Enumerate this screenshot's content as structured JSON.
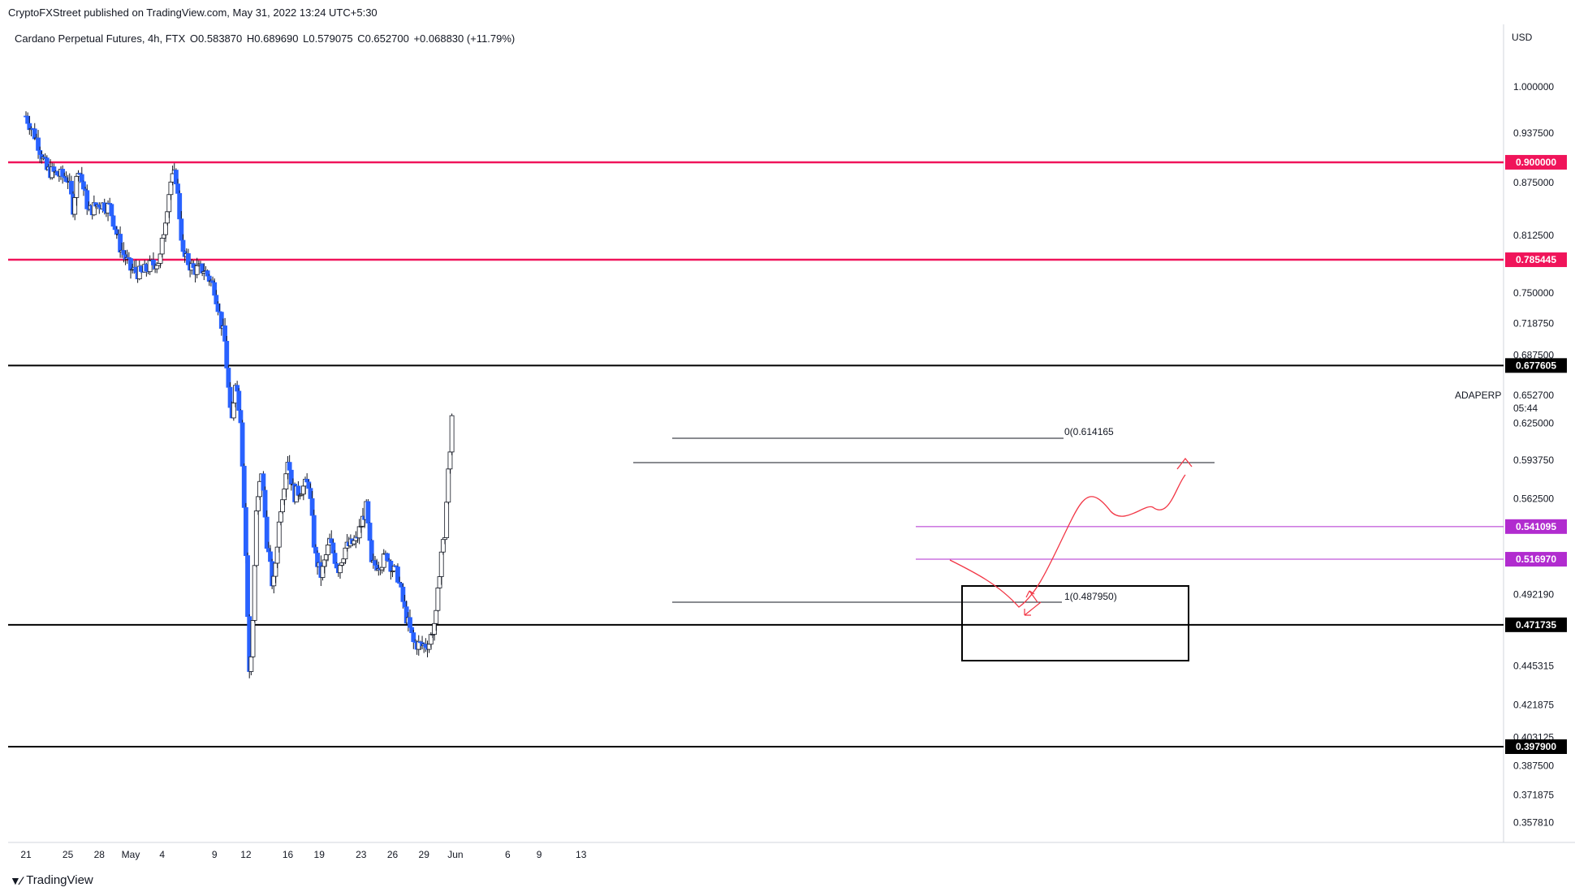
{
  "header": {
    "published_line": "CryptoFXStreet published on TradingView.com, May 31, 2022 13:24 UTC+5:30",
    "symbol": "Cardano Perpetual Futures, 4h, FTX",
    "open": "O0.583870",
    "high": "H0.689690",
    "low": "L0.579075",
    "close": "C0.652700",
    "change": "+0.068830 (+11.79%)"
  },
  "footer": {
    "brand": "TradingView",
    "brand_icon": "tradingview-logo-icon"
  },
  "colors": {
    "bull": "#ffffff",
    "bear": "#2962ff",
    "red_level": "#f0145a",
    "purple_level": "#b12ccf",
    "black_level": "#000000",
    "projection": "#f23645"
  },
  "chart_data": {
    "type": "candlestick",
    "currency": "USD",
    "interval": "4h",
    "symbol_tag": "ADAPERP",
    "last_price": "0.652700",
    "countdown": "05:44",
    "y_ticks": [
      "1.000000",
      "0.937500",
      "0.875000",
      "0.812500",
      "0.750000",
      "0.718750",
      "0.687500",
      "0.625000",
      "0.593750",
      "0.562500",
      "0.492190",
      "0.445315",
      "0.421875",
      "0.403125",
      "0.387500",
      "0.371875",
      "0.357810"
    ],
    "x_ticks": [
      {
        "label": "21",
        "day": 0
      },
      {
        "label": "25",
        "day": 4
      },
      {
        "label": "28",
        "day": 7
      },
      {
        "label": "May",
        "day": 10
      },
      {
        "label": "4",
        "day": 13
      },
      {
        "label": "9",
        "day": 18
      },
      {
        "label": "12",
        "day": 21
      },
      {
        "label": "16",
        "day": 25
      },
      {
        "label": "19",
        "day": 28
      },
      {
        "label": "23",
        "day": 32
      },
      {
        "label": "26",
        "day": 35
      },
      {
        "label": "29",
        "day": 38
      },
      {
        "label": "Jun",
        "day": 41
      },
      {
        "label": "6",
        "day": 46
      },
      {
        "label": "9",
        "day": 49
      },
      {
        "label": "13",
        "day": 53
      }
    ],
    "levels": [
      {
        "value": 0.9,
        "label": "0.900000",
        "style": "red"
      },
      {
        "value": 0.785445,
        "label": "0.785445",
        "style": "red"
      },
      {
        "value": 0.677605,
        "label": "0.677605",
        "style": "black"
      },
      {
        "value": 0.541095,
        "label": "0.541095",
        "style": "purple"
      },
      {
        "value": 0.51697,
        "label": "0.516970",
        "style": "purple"
      },
      {
        "value": 0.471735,
        "label": "0.471735",
        "style": "black"
      },
      {
        "value": 0.3979,
        "label": "0.397900",
        "style": "black"
      }
    ],
    "fib": {
      "level0": "0(0.614165",
      "level1": "1(0.487950)"
    },
    "price_path": [
      {
        "day": 0,
        "price": 0.96
      },
      {
        "day": 1,
        "price": 0.93
      },
      {
        "day": 2,
        "price": 0.89
      },
      {
        "day": 3,
        "price": 0.885
      },
      {
        "day": 4,
        "price": 0.88
      },
      {
        "day": 4.5,
        "price": 0.845
      },
      {
        "day": 5,
        "price": 0.895
      },
      {
        "day": 6,
        "price": 0.84
      },
      {
        "day": 7,
        "price": 0.85
      },
      {
        "day": 8,
        "price": 0.845
      },
      {
        "day": 9,
        "price": 0.8
      },
      {
        "day": 10,
        "price": 0.775
      },
      {
        "day": 11,
        "price": 0.77
      },
      {
        "day": 12,
        "price": 0.78
      },
      {
        "day": 12.8,
        "price": 0.785
      },
      {
        "day": 13.8,
        "price": 0.875
      },
      {
        "day": 14.3,
        "price": 0.885
      },
      {
        "day": 15,
        "price": 0.79
      },
      {
        "day": 16,
        "price": 0.775
      },
      {
        "day": 17,
        "price": 0.775
      },
      {
        "day": 18,
        "price": 0.755
      },
      {
        "day": 19,
        "price": 0.7
      },
      {
        "day": 19.6,
        "price": 0.62
      },
      {
        "day": 20,
        "price": 0.665
      },
      {
        "day": 20.5,
        "price": 0.63
      },
      {
        "day": 21,
        "price": 0.52
      },
      {
        "day": 21.3,
        "price": 0.44
      },
      {
        "day": 21.6,
        "price": 0.46
      },
      {
        "day": 22,
        "price": 0.55
      },
      {
        "day": 22.5,
        "price": 0.585
      },
      {
        "day": 23,
        "price": 0.53
      },
      {
        "day": 23.6,
        "price": 0.495
      },
      {
        "day": 24.3,
        "price": 0.555
      },
      {
        "day": 25,
        "price": 0.595
      },
      {
        "day": 25.6,
        "price": 0.565
      },
      {
        "day": 26.2,
        "price": 0.57
      },
      {
        "day": 27,
        "price": 0.575
      },
      {
        "day": 27.6,
        "price": 0.52
      },
      {
        "day": 28.2,
        "price": 0.505
      },
      {
        "day": 29,
        "price": 0.53
      },
      {
        "day": 29.8,
        "price": 0.51
      },
      {
        "day": 30.5,
        "price": 0.525
      },
      {
        "day": 31.5,
        "price": 0.53
      },
      {
        "day": 32.5,
        "price": 0.555
      },
      {
        "day": 33,
        "price": 0.512
      },
      {
        "day": 34,
        "price": 0.515
      },
      {
        "day": 34.5,
        "price": 0.52
      },
      {
        "day": 35,
        "price": 0.51
      },
      {
        "day": 35.5,
        "price": 0.505
      },
      {
        "day": 36.2,
        "price": 0.48
      },
      {
        "day": 37,
        "price": 0.46
      },
      {
        "day": 37.8,
        "price": 0.458
      },
      {
        "day": 38.5,
        "price": 0.46
      },
      {
        "day": 39.2,
        "price": 0.478
      },
      {
        "day": 39.6,
        "price": 0.52
      },
      {
        "day": 40,
        "price": 0.535
      },
      {
        "day": 40.3,
        "price": 0.58
      },
      {
        "day": 40.5,
        "price": 0.6
      },
      {
        "day": 40.75,
        "price": 0.6527
      }
    ]
  }
}
